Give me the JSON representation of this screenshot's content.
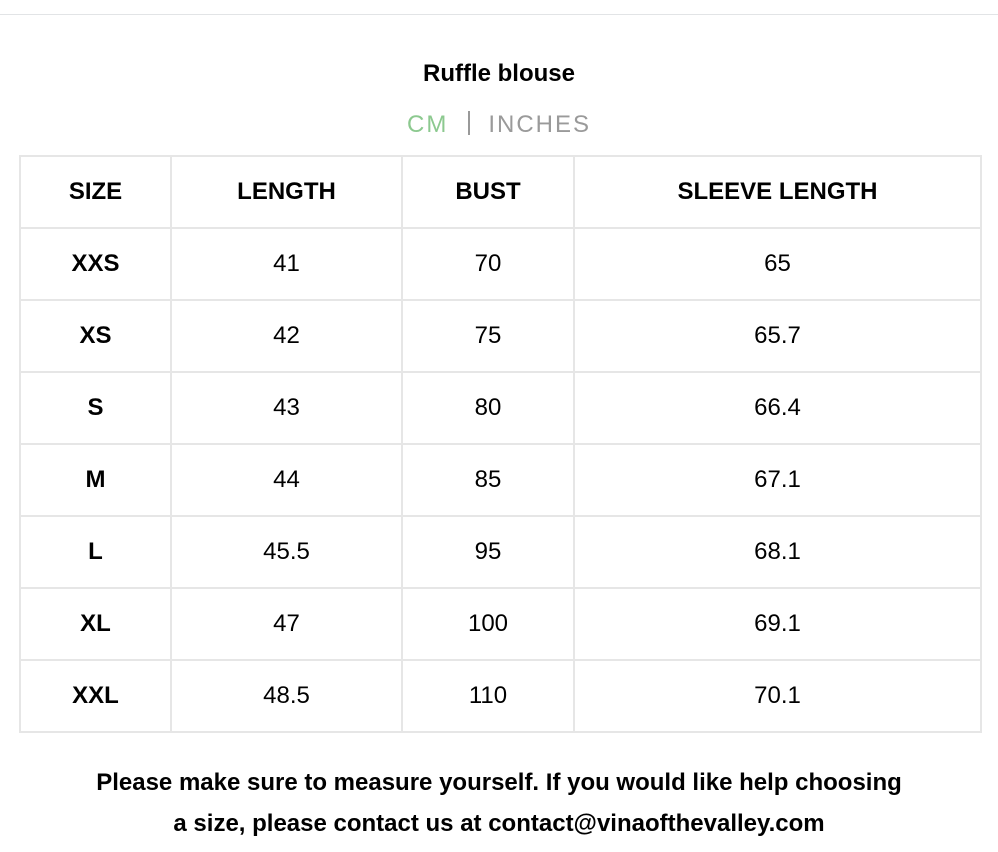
{
  "title": "Ruffle blouse",
  "units": {
    "cm": "CM",
    "inches": "INCHES",
    "active": "CM",
    "active_color": "#8cc98f"
  },
  "table": {
    "headers": [
      "SIZE",
      "LENGTH",
      "BUST",
      "SLEEVE LENGTH"
    ],
    "rows": [
      [
        "XXS",
        "41",
        "70",
        "65"
      ],
      [
        "XS",
        "42",
        "75",
        "65.7"
      ],
      [
        "S",
        "43",
        "80",
        "66.4"
      ],
      [
        "M",
        "44",
        "85",
        "67.1"
      ],
      [
        "L",
        "45.5",
        "95",
        "68.1"
      ],
      [
        "XL",
        "47",
        "100",
        "69.1"
      ],
      [
        "XXL",
        "48.5",
        "110",
        "70.1"
      ]
    ]
  },
  "note": {
    "line1": "Please make sure to measure yourself. If you would like help choosing",
    "line2": "a size, please contact us at contact@vinaofthevalley.com"
  }
}
